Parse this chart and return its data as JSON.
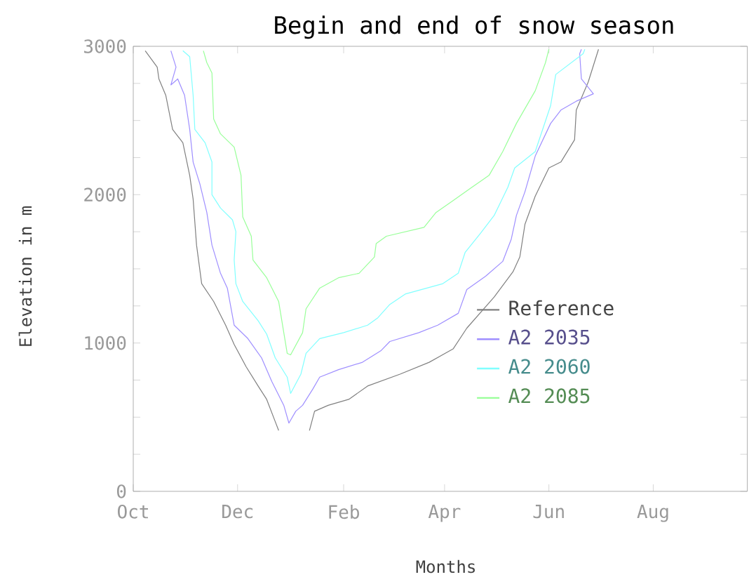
{
  "chart_data": {
    "type": "line",
    "title": "Begin and end of snow season",
    "xlabel": "Months",
    "ylabel": "Elevation in m",
    "xlim": [
      "2000-10-01",
      "2001-09-25"
    ],
    "ylim": [
      0,
      3000
    ],
    "xticks": [
      {
        "value": "2000-10-01",
        "label": "Oct"
      },
      {
        "value": "2000-12-01",
        "label": "Dec"
      },
      {
        "value": "2001-02-01",
        "label": "Feb"
      },
      {
        "value": "2001-04-01",
        "label": "Apr"
      },
      {
        "value": "2001-06-01",
        "label": "Jun"
      },
      {
        "value": "2001-08-01",
        "label": "Aug"
      }
    ],
    "yticks": [
      0,
      {
        "value": 250,
        "label": null
      },
      {
        "value": 500,
        "label": null
      },
      {
        "value": 750,
        "label": null
      },
      1000,
      {
        "value": 1250,
        "label": null
      },
      {
        "value": 1500,
        "label": null
      },
      {
        "value": 1750,
        "label": null
      },
      2000,
      {
        "value": 2250,
        "label": null
      },
      {
        "value": 2500,
        "label": null
      },
      {
        "value": 2750,
        "label": null
      },
      3000
    ],
    "legend": "right",
    "series": [
      {
        "name": "Reference",
        "color": "#808080",
        "x": [
          "2000-10-08",
          "2000-10-15",
          "2000-10-16",
          "2000-10-20",
          "2000-10-24",
          "2000-10-30",
          "2000-11-03",
          "2000-11-05",
          "2000-11-07",
          "2000-11-10",
          "2000-11-17",
          "2000-11-24",
          "2000-11-29",
          "2000-12-06",
          "2000-12-13",
          "2000-12-18",
          "2000-12-23",
          "2000-12-25",
          "2001-01-03",
          "2001-01-12",
          "2001-01-15",
          "2001-01-23",
          "2001-02-04",
          "2001-02-15",
          "2001-03-06",
          "2001-03-23",
          "2001-04-06",
          "2001-04-14",
          "2001-04-30",
          "2001-05-11",
          "2001-05-15",
          "2001-05-18",
          "2001-05-24",
          "2001-06-01",
          "2001-06-08",
          "2001-06-16",
          "2001-06-17",
          "2001-06-24",
          "2001-06-30"
        ],
        "values": [
          2970,
          2860,
          2780,
          2670,
          2440,
          2350,
          2130,
          1970,
          1660,
          1400,
          1280,
          1120,
          990,
          840,
          710,
          620,
          470,
          410,
          null,
          410,
          540,
          580,
          620,
          710,
          790,
          870,
          960,
          1100,
          1310,
          1480,
          1580,
          1800,
          1990,
          2180,
          2220,
          2370,
          2570,
          2760,
          2980
        ]
      },
      {
        "name": "A2 2035",
        "color": "#9f8fff",
        "x": [
          "2000-10-23",
          "2000-10-26",
          "2000-10-23",
          "2000-10-27",
          "2000-10-31",
          "2000-11-03",
          "2000-11-05",
          "2000-11-09",
          "2000-11-13",
          "2000-11-16",
          "2000-11-21",
          "2000-11-25",
          "2000-11-29",
          "2000-12-07",
          "2000-12-15",
          "2000-12-21",
          "2000-12-28",
          "2000-12-31",
          "2001-01-04",
          "2001-01-08",
          "2001-01-14",
          "2001-01-18",
          "2001-01-29",
          "2001-02-12",
          "2001-02-23",
          "2001-02-28",
          "2001-03-17",
          "2001-03-28",
          "2001-04-09",
          "2001-04-14",
          "2001-04-25",
          "2001-05-05",
          "2001-05-10",
          "2001-05-13",
          "2001-05-18",
          "2001-05-24",
          "2001-06-02",
          "2001-06-08",
          "2001-06-17",
          "2001-06-27",
          "2001-06-20",
          "2001-06-19",
          "2001-06-20"
        ],
        "values": [
          2970,
          2860,
          2740,
          2780,
          2670,
          2440,
          2220,
          2070,
          1880,
          1660,
          1470,
          1370,
          1120,
          1030,
          900,
          740,
          580,
          460,
          540,
          580,
          690,
          770,
          820,
          870,
          950,
          1010,
          1070,
          1120,
          1200,
          1360,
          1450,
          1550,
          1700,
          1860,
          2020,
          2260,
          2480,
          2570,
          2630,
          2680,
          2780,
          2950,
          2980
        ]
      },
      {
        "name": "A2 2060",
        "color": "#80ffff",
        "x": [
          "2000-10-30",
          "2000-11-03",
          "2000-11-05",
          "2000-11-06",
          "2000-11-12",
          "2000-11-16",
          "2000-11-16",
          "2000-11-21",
          "2000-11-28",
          "2000-11-30",
          "2000-11-29",
          "2000-11-30",
          "2000-12-04",
          "2000-12-13",
          "2000-12-18",
          "2000-12-23",
          "2000-12-30",
          "2001-01-01",
          "2001-01-07",
          "2001-01-10",
          "2001-01-18",
          "2001-02-01",
          "2001-02-15",
          "2001-02-21",
          "2001-02-28",
          "2001-03-09",
          "2001-03-31",
          "2001-04-09",
          "2001-04-13",
          "2001-04-22",
          "2001-04-30",
          "2001-05-08",
          "2001-05-12",
          "2001-05-24",
          "2001-06-02",
          "2001-06-05",
          "2001-06-21",
          "2001-06-22"
        ],
        "values": [
          2970,
          2930,
          2670,
          2440,
          2350,
          2220,
          2000,
          1910,
          1830,
          1750,
          1560,
          1400,
          1280,
          1150,
          1060,
          900,
          770,
          660,
          790,
          930,
          1030,
          1070,
          1120,
          1170,
          1260,
          1330,
          1400,
          1470,
          1610,
          1740,
          1860,
          2050,
          2180,
          2290,
          2600,
          2810,
          2950,
          2980
        ]
      },
      {
        "name": "A2 2085",
        "color": "#99ff99",
        "x": [
          "2000-11-11",
          "2000-11-13",
          "2000-11-16",
          "2000-11-17",
          "2000-11-21",
          "2000-11-29",
          "2000-12-03",
          "2000-12-04",
          "2000-12-09",
          "2000-12-10",
          "2000-12-18",
          "2000-12-25",
          "2000-12-30",
          "2001-01-01",
          "2001-01-08",
          "2001-01-10",
          "2001-01-18",
          "2001-01-29",
          "2001-02-10",
          "2001-02-19",
          "2001-02-20",
          "2001-02-26",
          "2001-03-20",
          "2001-03-27",
          "2001-04-06",
          "2001-04-17",
          "2001-04-27",
          "2001-05-05",
          "2001-05-13",
          "2001-05-24",
          "2001-05-30",
          "2001-06-01"
        ],
        "values": [
          2970,
          2890,
          2820,
          2510,
          2410,
          2320,
          2130,
          1850,
          1720,
          1560,
          1440,
          1280,
          930,
          920,
          1070,
          1230,
          1370,
          1440,
          1470,
          1580,
          1670,
          1720,
          1780,
          1880,
          1960,
          2050,
          2130,
          2290,
          2480,
          2700,
          2890,
          2980
        ]
      }
    ]
  }
}
